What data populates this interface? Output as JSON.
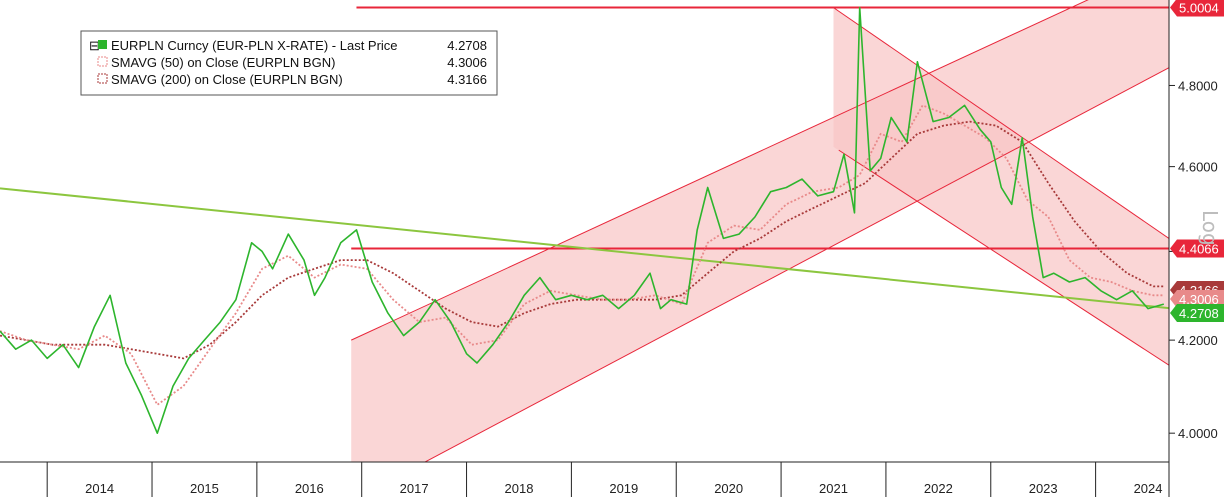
{
  "chart_data": {
    "type": "line",
    "y_scale": "log",
    "y_scale_label": "Log",
    "ylim": [
      3.94,
      5.02
    ],
    "xlim": [
      2013.55,
      2024.7
    ],
    "y_ticks": [
      4.0,
      4.2,
      4.4,
      4.6,
      4.8
    ],
    "y_tick_labels": [
      "4.0000",
      "4.2000",
      "4.4000",
      "4.6000",
      "4.8000"
    ],
    "x_tick_labels": [
      "2014",
      "2015",
      "2016",
      "2017",
      "2018",
      "2019",
      "2020",
      "2021",
      "2022",
      "2023",
      "2024"
    ],
    "legend": {
      "placement": "top-left",
      "entries": [
        {
          "name": "EURPLN Curncy (EUR-PLN X-RATE) - Last Price",
          "value": "4.2708",
          "color": "#2db52d"
        },
        {
          "name": "SMAVG (50)  on Close (EURPLN BGN)",
          "value": "4.3006",
          "color": "#e88a8a"
        },
        {
          "name": "SMAVG (200)  on Close (EURPLN BGN)",
          "value": "4.3166",
          "color": "#a83a3a"
        }
      ]
    },
    "price_tags": [
      {
        "label": "5.0004",
        "value": 5.0004,
        "color": "#e8263a"
      },
      {
        "label": "4.4066",
        "value": 4.4066,
        "color": "#e8263a"
      },
      {
        "label": "4.3166",
        "value": 4.3166,
        "color": "#a83a3a"
      },
      {
        "label": "4.3006",
        "value": 4.3006,
        "color": "#e88a8a"
      },
      {
        "label": "4.2708",
        "value": 4.2708,
        "color": "#2db52d"
      }
    ],
    "horizontal_lines": [
      {
        "value": 5.0004,
        "x_start": 2016.95,
        "color": "#e8263a"
      },
      {
        "value": 4.4066,
        "x_start": 2016.9,
        "color": "#e8263a"
      }
    ],
    "trend_line": {
      "color": "#8cc63f",
      "points": [
        [
          2013.55,
          4.548
        ],
        [
          2024.7,
          4.271
        ]
      ]
    },
    "channels": [
      {
        "name": "up-channel-upper",
        "color": "#e8263a",
        "points": [
          [
            2016.9,
            4.2
          ],
          [
            2024.7,
            5.12
          ]
        ]
      },
      {
        "name": "up-channel-lower",
        "color": "#e8263a",
        "points": [
          [
            2016.9,
            3.86
          ],
          [
            2024.7,
            4.845
          ]
        ]
      },
      {
        "name": "down-channel-upper",
        "color": "#e8263a",
        "points": [
          [
            2021.5,
            5.0
          ],
          [
            2024.7,
            4.43
          ]
        ]
      },
      {
        "name": "down-channel-lower",
        "color": "#e8263a",
        "points": [
          [
            2021.55,
            4.64
          ],
          [
            2024.7,
            4.145
          ]
        ]
      }
    ],
    "series": [
      {
        "name": "EURPLN Curncy (EUR-PLN X-RATE) - Last Price",
        "color": "#2db52d",
        "x": [
          2013.55,
          2013.7,
          2013.85,
          2014.0,
          2014.15,
          2014.3,
          2014.45,
          2014.6,
          2014.75,
          2014.9,
          2015.05,
          2015.2,
          2015.35,
          2015.5,
          2015.65,
          2015.8,
          2015.95,
          2016.05,
          2016.15,
          2016.3,
          2016.45,
          2016.55,
          2016.65,
          2016.8,
          2016.95,
          2017.1,
          2017.25,
          2017.4,
          2017.55,
          2017.7,
          2017.85,
          2018.0,
          2018.1,
          2018.25,
          2018.4,
          2018.55,
          2018.7,
          2018.85,
          2019.0,
          2019.15,
          2019.3,
          2019.45,
          2019.6,
          2019.75,
          2019.85,
          2019.95,
          2020.1,
          2020.2,
          2020.3,
          2020.45,
          2020.6,
          2020.75,
          2020.9,
          2021.05,
          2021.2,
          2021.35,
          2021.5,
          2021.6,
          2021.7,
          2021.75,
          2021.85,
          2021.95,
          2022.05,
          2022.2,
          2022.3,
          2022.45,
          2022.6,
          2022.75,
          2022.9,
          2023.0,
          2023.1,
          2023.2,
          2023.3,
          2023.4,
          2023.5,
          2023.6,
          2023.75,
          2023.9,
          2024.05,
          2024.2,
          2024.35,
          2024.5,
          2024.65
        ],
        "values": [
          4.22,
          4.18,
          4.2,
          4.16,
          4.19,
          4.14,
          4.23,
          4.3,
          4.15,
          4.08,
          4.0,
          4.1,
          4.16,
          4.2,
          4.24,
          4.29,
          4.42,
          4.4,
          4.36,
          4.44,
          4.38,
          4.3,
          4.34,
          4.42,
          4.45,
          4.33,
          4.26,
          4.21,
          4.24,
          4.29,
          4.24,
          4.17,
          4.15,
          4.19,
          4.24,
          4.3,
          4.34,
          4.29,
          4.3,
          4.29,
          4.3,
          4.27,
          4.3,
          4.35,
          4.27,
          4.29,
          4.28,
          4.45,
          4.55,
          4.43,
          4.44,
          4.48,
          4.54,
          4.55,
          4.57,
          4.53,
          4.54,
          4.63,
          4.49,
          5.0,
          4.59,
          4.62,
          4.72,
          4.66,
          4.86,
          4.71,
          4.72,
          4.75,
          4.69,
          4.66,
          4.55,
          4.51,
          4.67,
          4.48,
          4.34,
          4.35,
          4.33,
          4.34,
          4.31,
          4.29,
          4.31,
          4.27,
          4.28
        ]
      },
      {
        "name": "SMAVG (50)  on Close (EURPLN BGN)",
        "color": "#e88a8a",
        "x": [
          2013.55,
          2013.8,
          2014.05,
          2014.3,
          2014.55,
          2014.8,
          2015.05,
          2015.3,
          2015.55,
          2015.8,
          2016.05,
          2016.3,
          2016.55,
          2016.8,
          2017.05,
          2017.3,
          2017.55,
          2017.8,
          2018.05,
          2018.3,
          2018.55,
          2018.8,
          2019.05,
          2019.3,
          2019.55,
          2019.8,
          2020.05,
          2020.3,
          2020.55,
          2020.8,
          2021.05,
          2021.3,
          2021.55,
          2021.75,
          2021.95,
          2022.15,
          2022.35,
          2022.55,
          2022.75,
          2022.95,
          2023.15,
          2023.35,
          2023.55,
          2023.75,
          2023.95,
          2024.15,
          2024.35,
          2024.55,
          2024.65
        ],
        "values": [
          4.22,
          4.2,
          4.19,
          4.18,
          4.21,
          4.17,
          4.06,
          4.1,
          4.18,
          4.26,
          4.36,
          4.39,
          4.34,
          4.37,
          4.36,
          4.29,
          4.24,
          4.25,
          4.19,
          4.2,
          4.28,
          4.31,
          4.3,
          4.29,
          4.29,
          4.3,
          4.28,
          4.42,
          4.46,
          4.45,
          4.51,
          4.54,
          4.55,
          4.58,
          4.68,
          4.66,
          4.75,
          4.73,
          4.7,
          4.67,
          4.62,
          4.52,
          4.48,
          4.38,
          4.34,
          4.33,
          4.31,
          4.3,
          4.3
        ]
      },
      {
        "name": "SMAVG (200)  on Close (EURPLN BGN)",
        "color": "#a83a3a",
        "x": [
          2013.55,
          2013.8,
          2014.05,
          2014.3,
          2014.55,
          2014.8,
          2015.05,
          2015.3,
          2015.55,
          2015.8,
          2016.05,
          2016.3,
          2016.55,
          2016.8,
          2017.05,
          2017.3,
          2017.55,
          2017.8,
          2018.05,
          2018.3,
          2018.55,
          2018.8,
          2019.05,
          2019.3,
          2019.55,
          2019.8,
          2020.05,
          2020.3,
          2020.55,
          2020.8,
          2021.05,
          2021.3,
          2021.55,
          2021.8,
          2022.05,
          2022.3,
          2022.55,
          2022.8,
          2023.05,
          2023.3,
          2023.55,
          2023.8,
          2024.05,
          2024.3,
          2024.55,
          2024.65
        ],
        "values": [
          4.21,
          4.2,
          4.19,
          4.19,
          4.19,
          4.18,
          4.17,
          4.16,
          4.19,
          4.24,
          4.3,
          4.34,
          4.36,
          4.38,
          4.38,
          4.35,
          4.31,
          4.27,
          4.24,
          4.23,
          4.26,
          4.28,
          4.29,
          4.29,
          4.29,
          4.29,
          4.3,
          4.35,
          4.4,
          4.43,
          4.47,
          4.5,
          4.53,
          4.56,
          4.62,
          4.68,
          4.7,
          4.71,
          4.7,
          4.66,
          4.56,
          4.47,
          4.4,
          4.35,
          4.32,
          4.32
        ]
      }
    ]
  }
}
